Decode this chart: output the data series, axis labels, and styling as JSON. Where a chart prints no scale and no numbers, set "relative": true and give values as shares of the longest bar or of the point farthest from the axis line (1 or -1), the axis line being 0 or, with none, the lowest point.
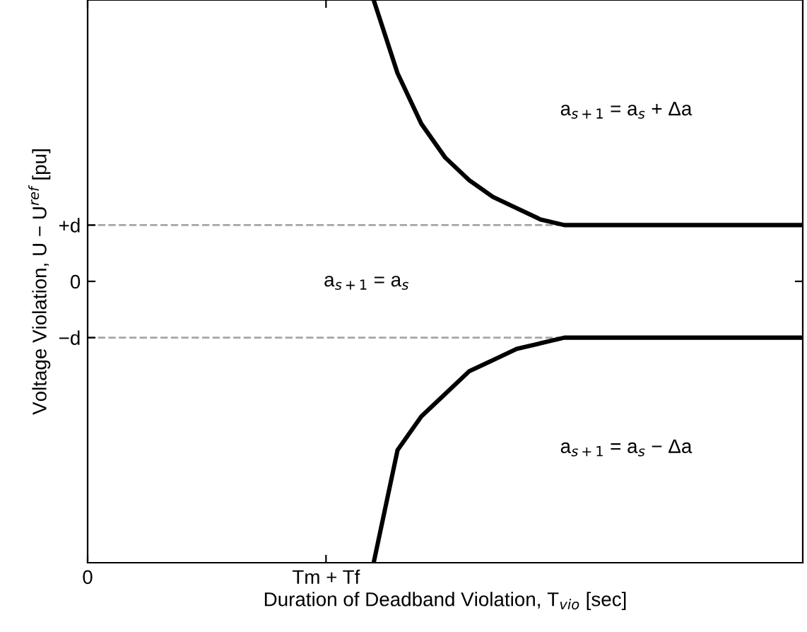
{
  "chart_data": {
    "type": "line",
    "relative": true,
    "xlabel": "Duration of Deadband Violation, T$_{vio}$ [sec]",
    "ylabel": "Voltage Violation, U − U$^{ref}$ [pu]",
    "categories": [
      "0",
      null,
      null,
      null,
      null,
      null,
      null,
      null,
      null,
      null,
      "Tm + Tf",
      null,
      null,
      null,
      null,
      null,
      null,
      null,
      null,
      null,
      null,
      null,
      null,
      null,
      null,
      null,
      null,
      null,
      null,
      null,
      null
    ],
    "series": [
      {
        "color": "#000000",
        "values": [
          null,
          null,
          null,
          null,
          null,
          null,
          null,
          null,
          null,
          null,
          null,
          null,
          1,
          0.87,
          0.78,
          0.72,
          0.68,
          0.65,
          0.63,
          0.61,
          0.6,
          0.6,
          0.6,
          0.6,
          0.6,
          0.6,
          0.6,
          0.6,
          0.6,
          0.6,
          0.6
        ]
      },
      {
        "color": "#000000",
        "values": [
          null,
          null,
          null,
          null,
          null,
          null,
          null,
          null,
          null,
          null,
          null,
          null,
          0,
          0.2,
          0.26,
          0.3,
          0.34,
          0.36,
          0.38,
          0.39,
          0.4,
          0.4,
          0.4,
          0.4,
          0.4,
          0.4,
          0.4,
          0.4,
          0.4,
          0.4,
          0.4
        ]
      }
    ],
    "ref_lines": [
      {
        "axis": "y",
        "value": 0.6,
        "label": "+d",
        "color": "#a6a6a6",
        "line_style": "dashed"
      },
      {
        "axis": "y",
        "value": 0.4,
        "label": "−d",
        "color": "#a6a6a6",
        "line_style": "dashed"
      }
    ],
    "annotations": [
      "a$_{s+1}$ = a$_{s}$ + Δa",
      "a$_{s+1}$ = a$_{s}$",
      "a$_{s+1}$ = a$_{s}$ − Δa",
      "0"
    ],
    "grid": false,
    "legend": false,
    "marker": "none",
    "line_style": "solid"
  }
}
